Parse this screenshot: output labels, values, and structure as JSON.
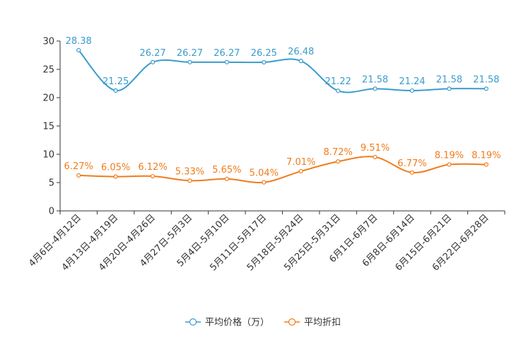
{
  "chart_data": {
    "type": "line",
    "categories": [
      "4月6日-4月12日",
      "4月13日-4月19日",
      "4月20日-4月26日",
      "4月27日-5月3日",
      "5月4日-5月10日",
      "5月11日-5月17日",
      "5月18日-5月24日",
      "5月25日-5月31日",
      "6月1日-6月7日",
      "6月8日-6月14日",
      "6月15日-6月21日",
      "6月22日-6月28日"
    ],
    "series": [
      {
        "name": "平均价格（万）",
        "color": "#3a9ccc",
        "values": [
          28.38,
          21.25,
          26.27,
          26.27,
          26.27,
          26.25,
          26.48,
          21.22,
          21.58,
          21.24,
          21.58,
          21.58
        ],
        "labels": [
          "28.38",
          "21.25",
          "26.27",
          "26.27",
          "26.27",
          "26.25",
          "26.48",
          "21.22",
          "21.58",
          "21.24",
          "21.58",
          "21.58"
        ]
      },
      {
        "name": "平均折扣",
        "color": "#f07c1c",
        "values": [
          6.27,
          6.05,
          6.12,
          5.33,
          5.65,
          5.04,
          7.01,
          8.72,
          9.51,
          6.77,
          8.19,
          8.19
        ],
        "labels": [
          "6.27%",
          "6.05%",
          "6.12%",
          "5.33%",
          "5.65%",
          "5.04%",
          "7.01%",
          "8.72%",
          "9.51%",
          "6.77%",
          "8.19%",
          "8.19%"
        ]
      }
    ],
    "yticks": [
      "0",
      "5",
      "10",
      "15",
      "20",
      "25",
      "30"
    ],
    "ylim": [
      0,
      30
    ],
    "grid": false,
    "legend_position": "bottom-center",
    "title": "",
    "xlabel": "",
    "ylabel": ""
  }
}
